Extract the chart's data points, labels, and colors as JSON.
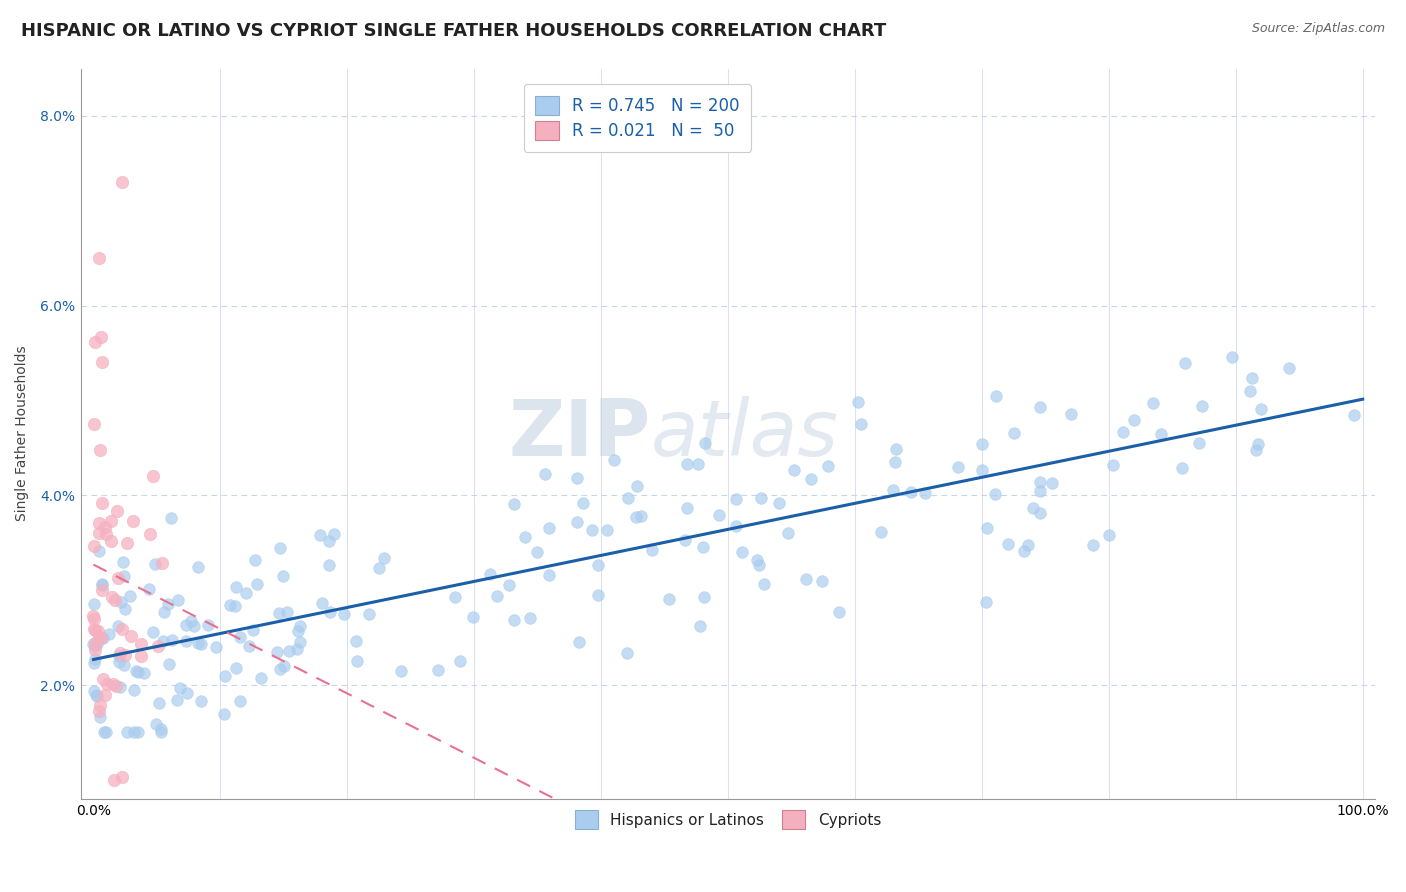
{
  "title": "HISPANIC OR LATINO VS CYPRIOT SINGLE FATHER HOUSEHOLDS CORRELATION CHART",
  "source": "Source: ZipAtlas.com",
  "ylabel": "Single Father Households",
  "xlabel": "",
  "watermark1": "ZIP",
  "watermark2": "atlas",
  "xmin": -0.01,
  "xmax": 1.01,
  "ymin": 0.008,
  "ymax": 0.085,
  "yticks": [
    0.02,
    0.04,
    0.06,
    0.08
  ],
  "ytick_labels": [
    "2.0%",
    "4.0%",
    "6.0%",
    "8.0%"
  ],
  "blue_R": 0.745,
  "blue_N": 200,
  "pink_R": 0.021,
  "pink_N": 50,
  "blue_color": "#aaccee",
  "pink_color": "#f5b0c0",
  "blue_line_color": "#1a5fa8",
  "pink_line_color": "#e87090",
  "legend_label_blue": "Hispanics or Latinos",
  "legend_label_pink": "Cypriots",
  "background_color": "#ffffff",
  "grid_color": "#c8d4e8",
  "title_fontsize": 13,
  "label_fontsize": 10,
  "tick_fontsize": 10,
  "legend_fontsize": 12
}
